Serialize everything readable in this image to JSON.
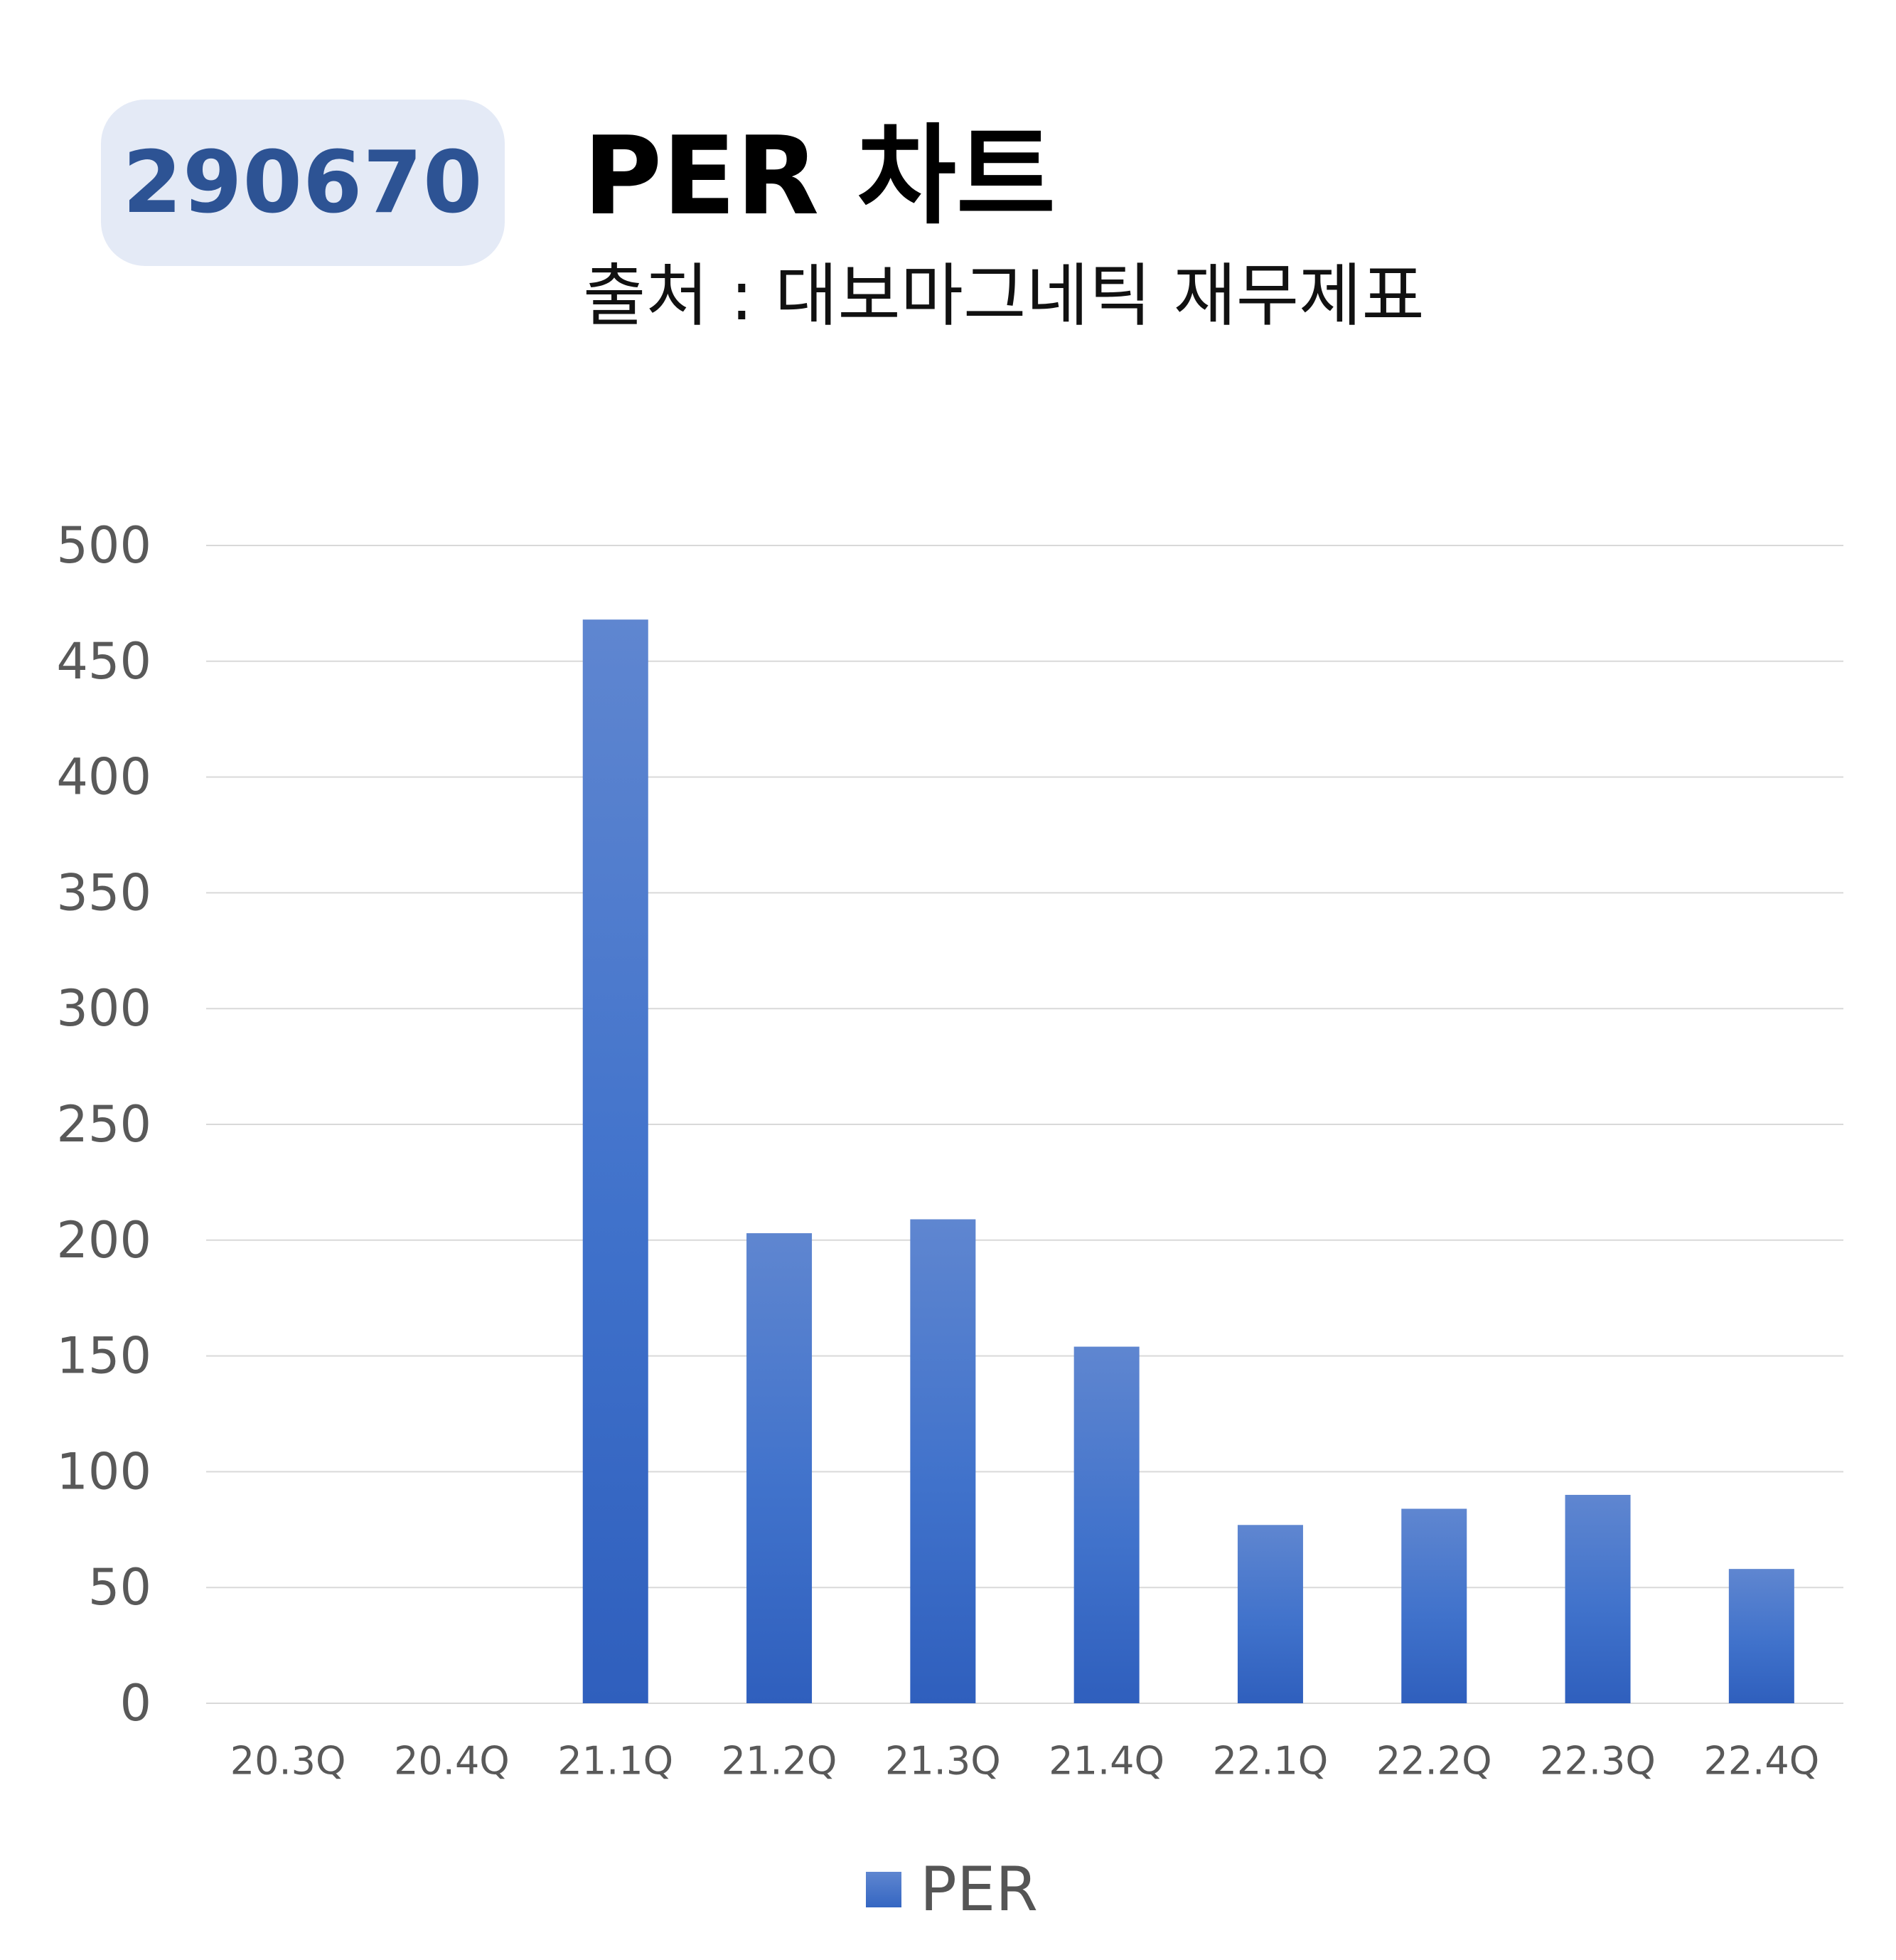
{
  "header": {
    "code": "290670",
    "title": "PER 차트",
    "subtitle": "출처 : 대보마그네틱 재무제표"
  },
  "colors": {
    "badge_bg": "#e4eaf6",
    "badge_text": "#2d5394",
    "bar_top": "#5f86d0",
    "bar_bottom": "#2f5fbd",
    "grid": "#d9d9d9",
    "tick_text": "#595959"
  },
  "chart_data": {
    "type": "bar",
    "categories": [
      "20.3Q",
      "20.4Q",
      "21.1Q",
      "21.2Q",
      "21.3Q",
      "21.4Q",
      "22.1Q",
      "22.2Q",
      "22.3Q",
      "22.4Q"
    ],
    "series": [
      {
        "name": "PER",
        "values": [
          0,
          0,
          468,
          203,
          209,
          154,
          77,
          84,
          90,
          58
        ]
      }
    ],
    "ylim": [
      0,
      500
    ],
    "yticks": [
      0,
      50,
      100,
      150,
      200,
      250,
      300,
      350,
      400,
      450,
      500
    ],
    "grid": true,
    "legend_position": "bottom"
  }
}
